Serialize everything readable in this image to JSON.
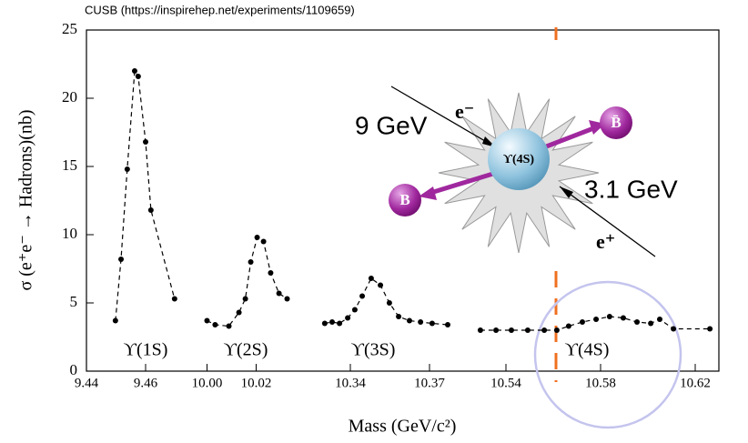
{
  "chart_data": {
    "type": "line",
    "source": "CUSB (https://inspirehep.net/experiments/1109659)",
    "ylabel": "σ (e⁺e⁻ → Hadrons)(nb)",
    "xlabel": "Mass (GeV/c²)",
    "ylim": [
      0,
      25
    ],
    "yticks": [
      0,
      5,
      10,
      15,
      20,
      25
    ],
    "color": "#000000",
    "line_style": "dashed",
    "segments": [
      {
        "label": "ϒ(1S)",
        "xlim": [
          9.44,
          9.472
        ],
        "xticks": [
          9.44,
          9.46
        ],
        "x": [
          9.4498,
          9.4517,
          9.4538,
          9.4563,
          9.4575,
          9.46,
          9.4618,
          9.4698
        ],
        "values": [
          3.7,
          8.2,
          14.8,
          22,
          21.6,
          16.8,
          11.8,
          5.3
        ]
      },
      {
        "label": "ϒ(2S)",
        "xlim": [
          9.995,
          10.035
        ],
        "xticks": [
          {
            "value": 10,
            "label": "10.00"
          },
          10.02
        ],
        "x": [
          10.0,
          10.0033,
          10.0089,
          10.013,
          10.0156,
          10.0178,
          10.0204,
          10.023,
          10.0259,
          10.0293,
          10.0326
        ],
        "values": [
          3.7,
          3.4,
          3.3,
          4.3,
          5.3,
          8.0,
          9.8,
          9.5,
          7.2,
          5.7,
          5.3
        ]
      },
      {
        "label": "ϒ(3S)",
        "xlim": [
          10.33,
          10.38
        ],
        "xticks": [
          10.34,
          10.37
        ],
        "x": [
          10.3303,
          10.3331,
          10.3359,
          10.339,
          10.3417,
          10.3445,
          10.3479,
          10.3514,
          10.3548,
          10.3583,
          10.3624,
          10.3666,
          10.371,
          10.3769
        ],
        "values": [
          3.5,
          3.6,
          3.5,
          3.9,
          4.5,
          5.5,
          6.8,
          6.3,
          5.0,
          4.0,
          3.7,
          3.6,
          3.5,
          3.4
        ]
      },
      {
        "label": "ϒ(4S)",
        "xlim": [
          10.53,
          10.63
        ],
        "xticks": [
          10.54,
          10.58,
          10.62
        ],
        "x": [
          10.5292,
          10.5358,
          10.5423,
          10.5492,
          10.5562,
          10.5615,
          10.5665,
          10.5723,
          10.5781,
          10.5838,
          10.5896,
          10.5954,
          10.6012,
          10.605,
          10.6108,
          10.6262
        ],
        "values": [
          3.0,
          3.0,
          3.0,
          3.0,
          3.0,
          3.0,
          3.3,
          3.6,
          3.8,
          4.0,
          3.9,
          3.6,
          3.5,
          3.8,
          3.1,
          3.1
        ]
      }
    ]
  },
  "inset": {
    "electron": "e⁻",
    "electron_energy": "9 GeV",
    "resonance": "ϒ(4S)",
    "antib": "B̄",
    "b": "B",
    "positron_energy": "3.1 GeV",
    "positron": "e⁺"
  }
}
